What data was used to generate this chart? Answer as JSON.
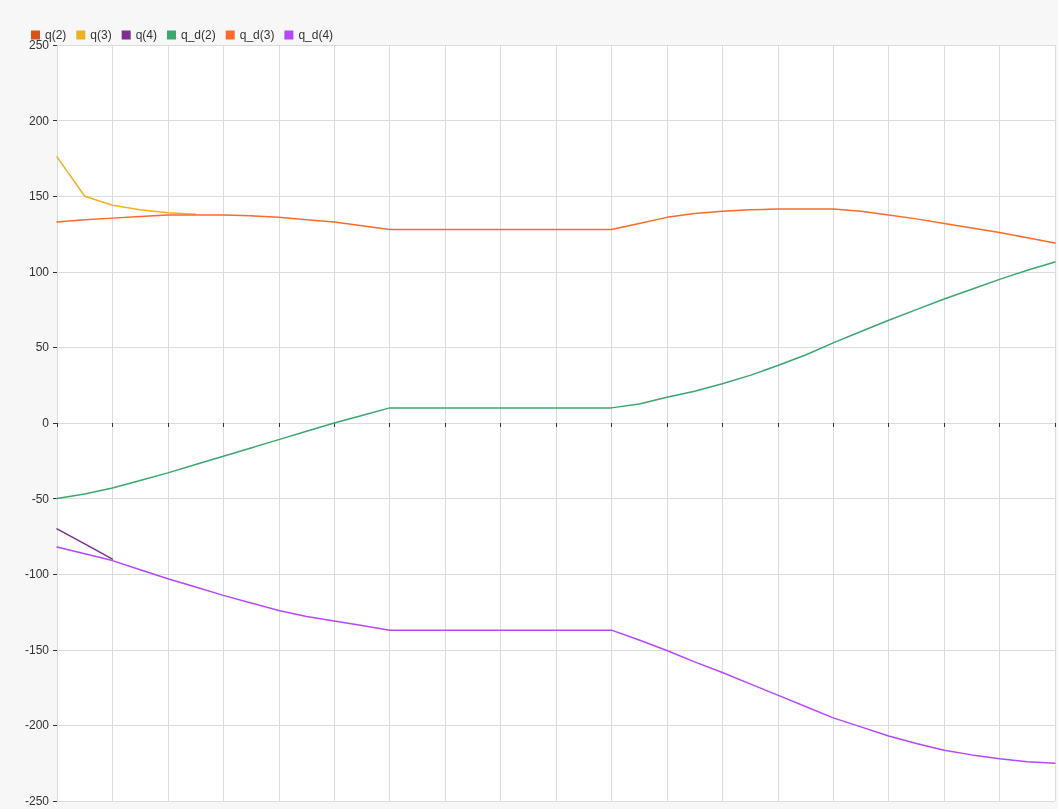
{
  "chart_data": {
    "type": "line",
    "categories": [
      null,
      null,
      null,
      null,
      null,
      null,
      null,
      null,
      null,
      null,
      null,
      null,
      null,
      null,
      null,
      null,
      null,
      null,
      null,
      null,
      null,
      null,
      null,
      null,
      null,
      null,
      null,
      null,
      null,
      null,
      null,
      null,
      null,
      null,
      null,
      null,
      null
    ],
    "ylim": [
      -250,
      250
    ],
    "yticks": [
      -250,
      -200,
      -150,
      -100,
      -50,
      0,
      50,
      100,
      150,
      200,
      250
    ],
    "grid": true,
    "legend": "top left",
    "series": [
      {
        "name": "q(2)",
        "color": "#d95319",
        "values": [
          null,
          null,
          null,
          null,
          null,
          null,
          null,
          null,
          null,
          null,
          null,
          null,
          null,
          null,
          null,
          null,
          null,
          null,
          null,
          null,
          null,
          null,
          null,
          null,
          null,
          null,
          null,
          null,
          null,
          null,
          null,
          null,
          null,
          null,
          null,
          null,
          null
        ]
      },
      {
        "name": "q(3)",
        "color": "#edb120",
        "values": [
          176,
          150,
          144,
          141,
          139,
          138,
          null,
          null,
          null,
          null,
          null,
          null,
          null,
          null,
          null,
          null,
          null,
          null,
          null,
          null,
          null,
          null,
          null,
          null,
          null,
          null,
          null,
          null,
          null,
          null,
          null,
          null,
          null,
          null,
          null,
          null,
          null
        ]
      },
      {
        "name": "q(4)",
        "color": "#7e2f8e",
        "values": [
          -70,
          -80,
          -90,
          null,
          null,
          null,
          null,
          null,
          null,
          null,
          null,
          null,
          null,
          null,
          null,
          null,
          null,
          null,
          null,
          null,
          null,
          null,
          null,
          null,
          null,
          null,
          null,
          null,
          null,
          null,
          null,
          null,
          null,
          null,
          null,
          null,
          null
        ]
      },
      {
        "name": "q_d(2)",
        "color": "#3aa76d",
        "values": [
          -50,
          -47,
          -43,
          -38,
          -33,
          -27.5,
          -22,
          -16.5,
          -11,
          -5.5,
          0,
          5,
          10,
          10,
          10,
          10,
          10,
          10,
          10,
          10,
          10,
          12.5,
          17,
          21,
          26,
          31.5,
          38,
          45,
          53,
          60.5,
          68,
          75,
          82,
          88.5,
          95,
          101,
          106.5
        ]
      },
      {
        "name": "q_d(3)",
        "color": "#ff6929",
        "values": [
          133,
          134.5,
          135.5,
          136.5,
          137.5,
          137.5,
          137.5,
          137,
          136,
          134.5,
          133,
          130.5,
          128,
          128,
          128,
          128,
          128,
          128,
          128,
          128,
          128,
          132,
          136,
          138.5,
          140,
          141,
          141.5,
          141.5,
          141.5,
          140,
          137.5,
          135,
          132,
          129,
          126,
          122.5,
          119
        ]
      },
      {
        "name": "q_d(4)",
        "color": "#b746ff",
        "values": [
          -82,
          -86.5,
          -91,
          -97,
          -103,
          -108.5,
          -114,
          -119,
          -124,
          -128,
          -131,
          -134,
          -137,
          -137,
          -137,
          -137,
          -137,
          -137,
          -137,
          -137,
          -137,
          -143.5,
          -150.5,
          -158,
          -165,
          -172.5,
          -180,
          -187.5,
          -195,
          -201,
          -207,
          -212,
          -216.5,
          -219.5,
          -222,
          -224,
          -225
        ]
      }
    ]
  }
}
